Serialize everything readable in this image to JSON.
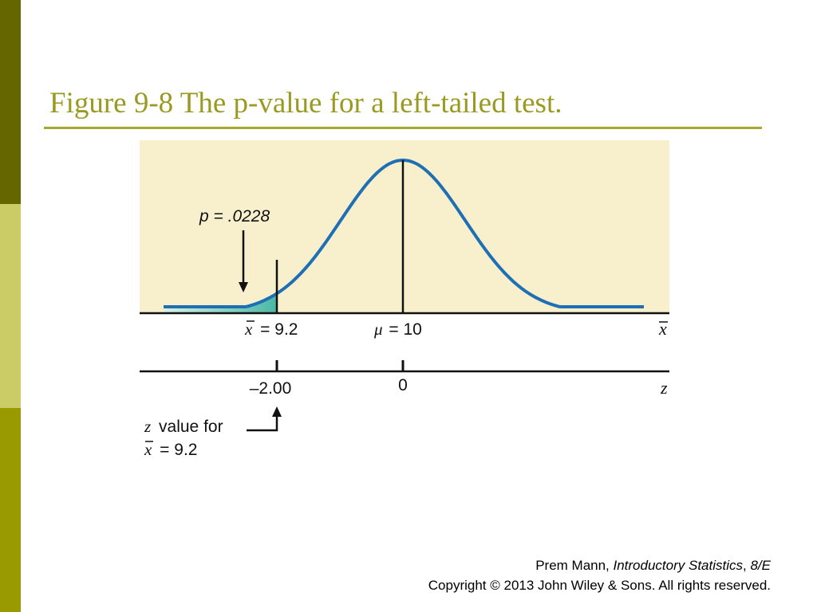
{
  "slide": {
    "title": "Figure 9-8 The p-value for a left-tailed test."
  },
  "figure": {
    "p_label": "p = .0228",
    "xbar_sym": "x",
    "xbar_value_label": "= 9.2",
    "mu_sym": "μ",
    "mu_value_label": "= 10",
    "xbar_axis_label": "x",
    "z_tick_left": "–2.00",
    "z_tick_center": "0",
    "z_axis_label": "z",
    "z_value_italic": "z",
    "z_value_text": "value for",
    "z_value_xbar": "x",
    "z_value_eq": "= 9.2",
    "colors": {
      "panel": "#f8f0cc",
      "curve": "#1f6fb5",
      "shade_light": "#d8f0e8",
      "shade_dark": "#4ab8a4"
    }
  },
  "footer": {
    "author": "Prem Mann, ",
    "book": "Introductory Statistics",
    "sep": ", ",
    "edition": "8/E",
    "copyright": "Copyright © 2013 John Wiley & Sons. All rights reserved."
  }
}
